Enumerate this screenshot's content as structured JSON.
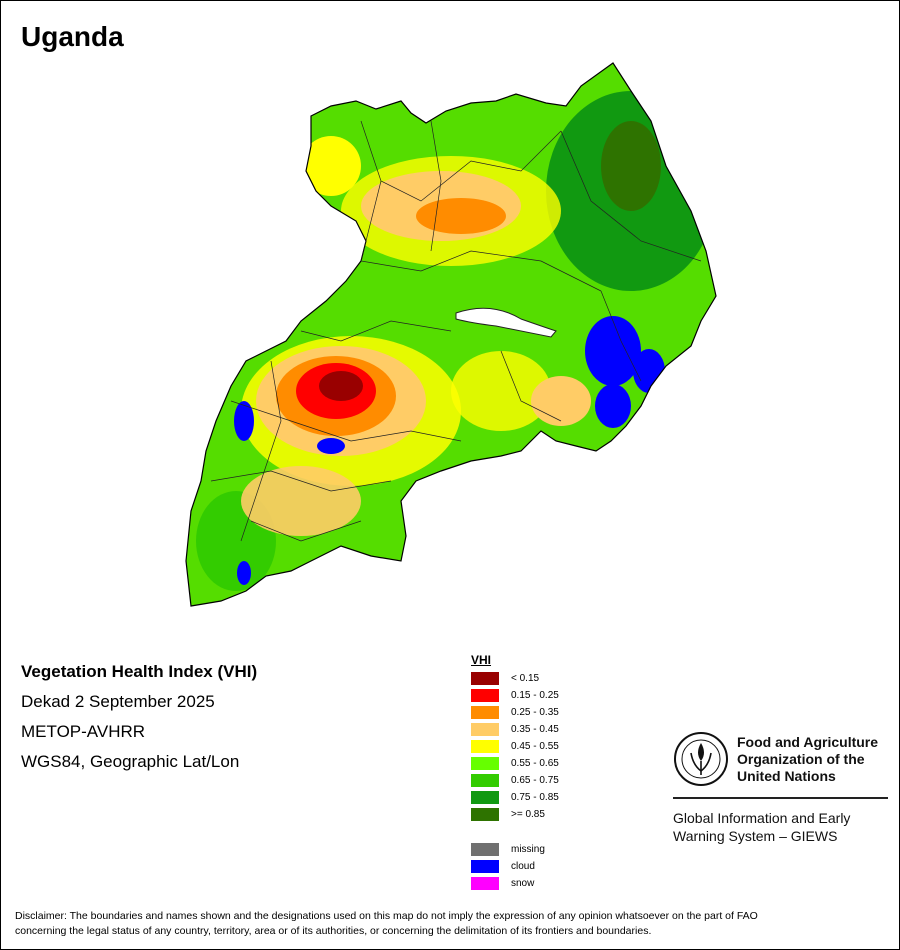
{
  "map": {
    "title": "Uganda",
    "product": "Vegetation Health Index (VHI)",
    "period": "Dekad 2 September 2025",
    "sensor": "METOP-AVHRR",
    "projection": "WGS84, Geographic Lat/Lon"
  },
  "legend": {
    "title": "VHI",
    "classes": [
      {
        "label": "< 0.15",
        "color": "#990000"
      },
      {
        "label": "0.15 - 0.25",
        "color": "#ff0000"
      },
      {
        "label": "0.25 - 0.35",
        "color": "#ff8c00"
      },
      {
        "label": "0.35 - 0.45",
        "color": "#ffcc66"
      },
      {
        "label": "0.45 - 0.55",
        "color": "#ffff00"
      },
      {
        "label": "0.55 - 0.65",
        "color": "#66ff00"
      },
      {
        "label": "0.65 - 0.75",
        "color": "#33cc00"
      },
      {
        "label": "0.75 - 0.85",
        "color": "#119911"
      },
      {
        "label": ">= 0.85",
        "color": "#2e7300"
      }
    ],
    "special": [
      {
        "label": "missing",
        "color": "#707070"
      },
      {
        "label": "cloud",
        "color": "#0000ff"
      },
      {
        "label": "snow",
        "color": "#ff00ff"
      }
    ]
  },
  "org": {
    "name_line1": "Food and Agriculture",
    "name_line2": "Organization of the",
    "name_line3": "United Nations",
    "system_line1": "Global Information and Early",
    "system_line2": "Warning System – GIEWS",
    "logo_icon": "fao-logo-icon"
  },
  "disclaimer": {
    "line1": "Disclaimer: The boundaries and names shown and the designations used on this map do not imply the expression of any opinion whatsoever on the part of FAO",
    "line2": "concerning the legal status of any country, territory, area or of its authorities, or concerning the delimitation of its frontiers and boundaries."
  }
}
